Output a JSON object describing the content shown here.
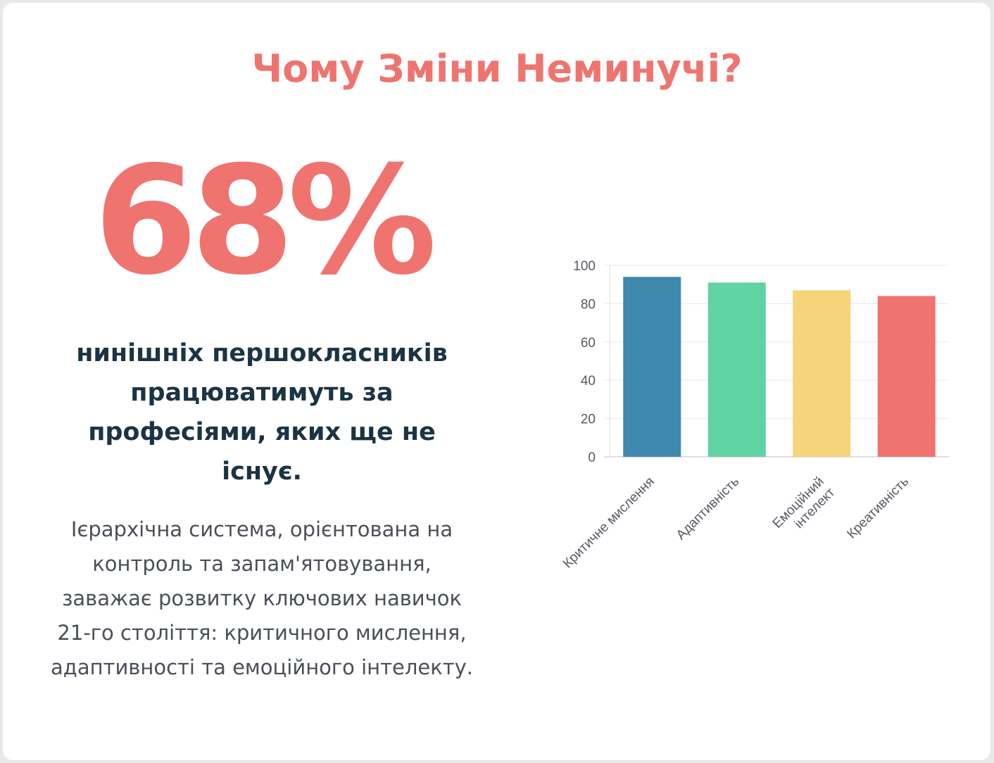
{
  "slide": {
    "title": "Чому Зміни Неминучі?",
    "stat_value": "68%",
    "headline": "нинішніх першокласників працюватимуть за професіями, яких ще не існує.",
    "body": "Ієрархічна система, орієнтована на контроль та запам'ятовування, заважає розвитку ключових навичок 21-го століття: критичного мислення, адаптивності та емоційного інтелекту."
  },
  "colors": {
    "accent": "#ef7470",
    "headline": "#1b3444",
    "body": "#4a4f58"
  },
  "chart_data": {
    "type": "bar",
    "categories": [
      [
        "Критичне мислення"
      ],
      [
        "Адаптивність"
      ],
      [
        "Емоційний",
        "інтелект"
      ],
      [
        "Креативність"
      ]
    ],
    "values": [
      94,
      91,
      87,
      84
    ],
    "colors": [
      "#3f88ae",
      "#5fd3a2",
      "#f7d479",
      "#ef7470"
    ],
    "ylim": [
      0,
      100
    ],
    "yticks": [
      0,
      20,
      40,
      60,
      80,
      100
    ],
    "title": "",
    "xlabel": "",
    "ylabel": "",
    "grid": true,
    "legend": "none"
  }
}
